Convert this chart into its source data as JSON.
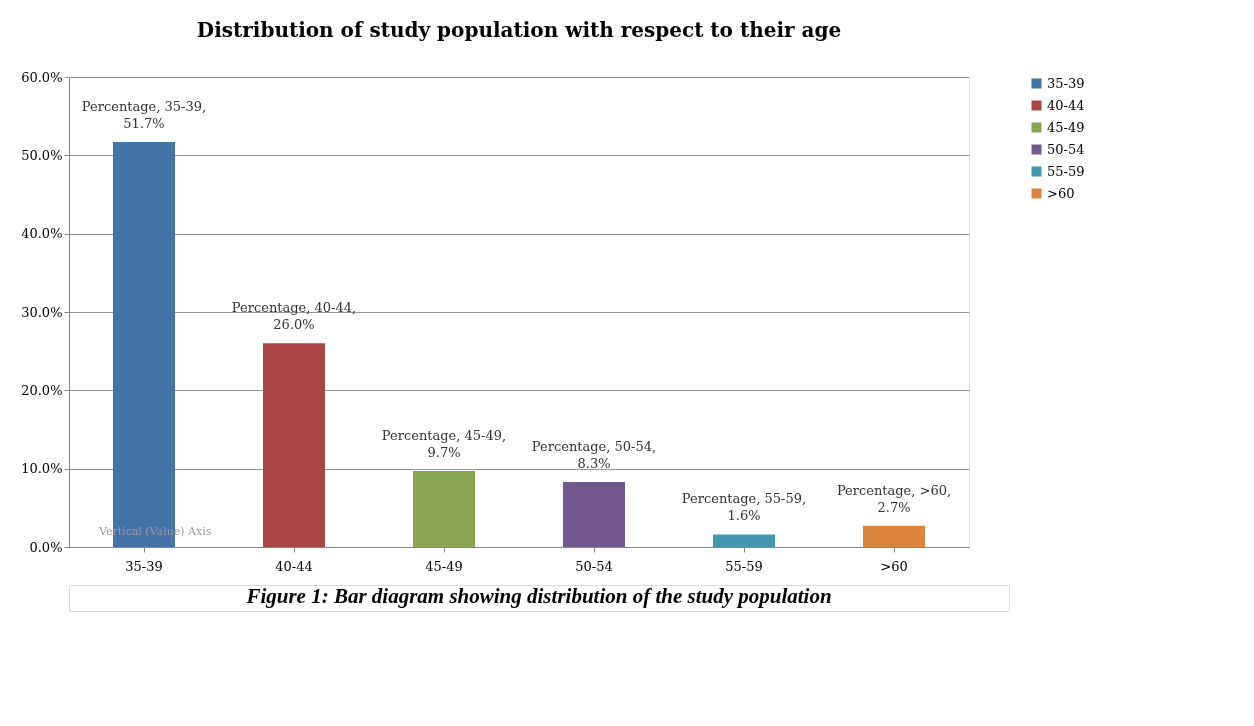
{
  "chart_data": {
    "type": "bar",
    "title": "Distribution of study population with respect to their age",
    "categories": [
      "35-39",
      "40-44",
      "45-49",
      "50-54",
      "55-59",
      ">60"
    ],
    "series": [
      {
        "name": "35-39",
        "color": "#4572a7",
        "values": [
          51.7,
          null,
          null,
          null,
          null,
          null
        ],
        "value_labels": [
          "Percentage, 35-39, 51.7%",
          null,
          null,
          null,
          null,
          null
        ]
      },
      {
        "name": "40-44",
        "color": "#aa4643",
        "values": [
          null,
          26.0,
          null,
          null,
          null,
          null
        ],
        "value_labels": [
          null,
          "Percentage, 40-44, 26.0%",
          null,
          null,
          null,
          null
        ]
      },
      {
        "name": "45-49",
        "color": "#89a54e",
        "values": [
          null,
          null,
          9.7,
          null,
          null,
          null
        ],
        "value_labels": [
          null,
          null,
          "Percentage, 45-49, 9.7%",
          null,
          null,
          null
        ]
      },
      {
        "name": "50-54",
        "color": "#71588f",
        "values": [
          null,
          null,
          null,
          8.3,
          null,
          null
        ],
        "value_labels": [
          null,
          null,
          null,
          "Percentage, 50-54, 8.3%",
          null,
          null
        ]
      },
      {
        "name": "55-59",
        "color": "#4198af",
        "values": [
          null,
          null,
          null,
          null,
          1.6,
          null
        ],
        "value_labels": [
          null,
          null,
          null,
          null,
          "Percentage, 55-59, 1.6%",
          null
        ]
      },
      {
        "name": ">60",
        "color": "#db843d",
        "values": [
          null,
          null,
          null,
          null,
          null,
          2.7
        ],
        "value_labels": [
          null,
          null,
          null,
          null,
          null,
          "Percentage, >60, 2.7%"
        ]
      }
    ],
    "ylim": [
      0,
      60
    ],
    "yticks": [
      {
        "value": 0,
        "label": "0.0%"
      },
      {
        "value": 10,
        "label": "10.0%"
      },
      {
        "value": 20,
        "label": "20.0%"
      },
      {
        "value": 30,
        "label": "30.0%"
      },
      {
        "value": 40,
        "label": "40.0%"
      },
      {
        "value": 50,
        "label": "50.0%"
      },
      {
        "value": 60,
        "label": "60.0%"
      }
    ],
    "grid": "y",
    "legend": "right",
    "annotations": [
      "Vertical (Value) Axis",
      "Figure 1: Bar diagram showing distribution of the study population"
    ]
  }
}
